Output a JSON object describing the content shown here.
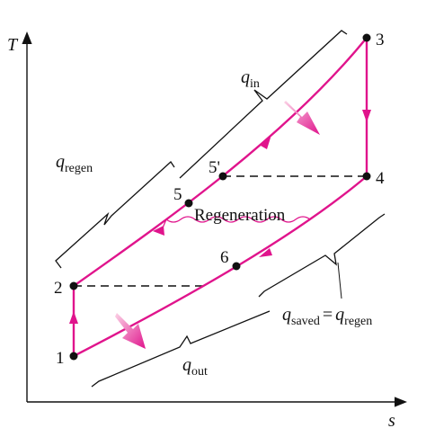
{
  "axes": {
    "y_label": "T",
    "x_label": "s"
  },
  "points": {
    "p1": "1",
    "p2": "2",
    "p3": "3",
    "p4": "4",
    "p5": "5",
    "p5prime": "5'",
    "p6": "6"
  },
  "labels": {
    "q_in": {
      "symbol": "q",
      "subscript": "in"
    },
    "q_regen": {
      "symbol": "q",
      "subscript": "regen"
    },
    "q_out": {
      "symbol": "q",
      "subscript": "out"
    },
    "q_saved": {
      "symbol": "q",
      "subscript": "saved",
      "equals": "=",
      "symbol2": "q",
      "subscript2": "regen"
    },
    "regeneration": "Regeneration"
  }
}
